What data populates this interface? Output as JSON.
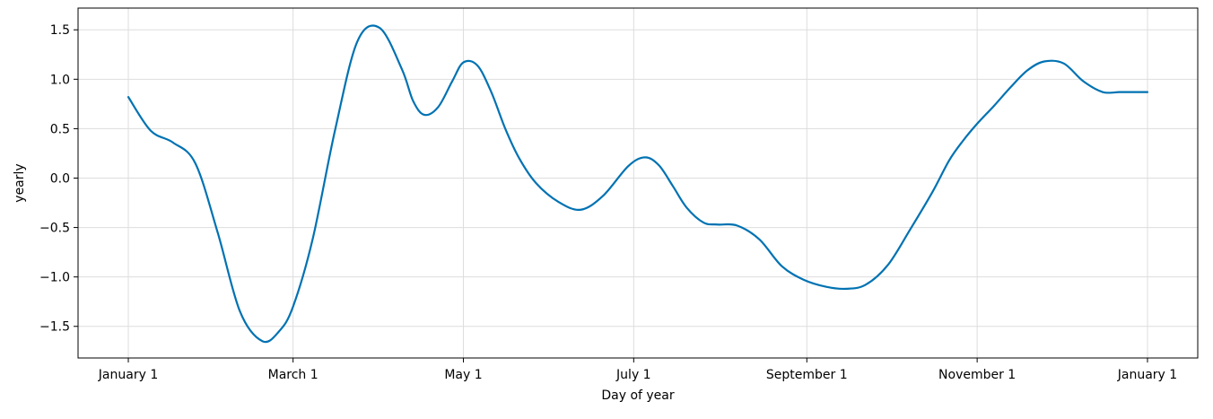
{
  "chart_data": {
    "type": "line",
    "title": "",
    "xlabel": "Day of year",
    "ylabel": "yearly",
    "x_tick_labels": [
      {
        "label": "January 1",
        "day": 1
      },
      {
        "label": "March 1",
        "day": 60
      },
      {
        "label": "May 1",
        "day": 121
      },
      {
        "label": "July 1",
        "day": 182
      },
      {
        "label": "September 1",
        "day": 244
      },
      {
        "label": "November 1",
        "day": 305
      },
      {
        "label": "January 1",
        "day": 366
      }
    ],
    "y_ticks": [
      1.5,
      1.0,
      0.5,
      0.0,
      -0.5,
      -1.0,
      -1.5
    ],
    "y_tick_labels": [
      "1.5",
      "1.0",
      "0.5",
      "0.0",
      "−0.5",
      "−1.0",
      "−1.5"
    ],
    "xlim": [
      -17,
      384
    ],
    "ylim": [
      -1.82,
      1.72
    ],
    "grid": true,
    "series": [
      {
        "color": "#0072b2",
        "x": [
          1,
          9,
          17,
          25,
          33,
          41,
          49,
          55,
          60,
          67,
          75,
          83,
          91,
          99,
          103,
          107,
          112,
          117,
          121,
          126,
          131,
          136,
          141,
          147,
          155,
          163,
          171,
          180,
          186,
          191,
          196,
          201,
          207,
          212,
          219,
          227,
          235,
          243,
          251,
          258,
          265,
          273,
          281,
          289,
          295,
          300,
          305,
          311,
          317,
          323,
          329,
          336,
          343,
          350,
          356,
          361,
          366
        ],
        "y": [
          0.82,
          0.48,
          0.36,
          0.15,
          -0.55,
          -1.35,
          -1.65,
          -1.55,
          -1.3,
          -0.62,
          0.48,
          1.38,
          1.52,
          1.1,
          0.78,
          0.64,
          0.72,
          0.98,
          1.17,
          1.14,
          0.87,
          0.5,
          0.2,
          -0.05,
          -0.24,
          -0.32,
          -0.18,
          0.12,
          0.21,
          0.13,
          -0.08,
          -0.3,
          -0.45,
          -0.47,
          -0.48,
          -0.62,
          -0.89,
          -1.03,
          -1.1,
          -1.12,
          -1.08,
          -0.88,
          -0.52,
          -0.14,
          0.18,
          0.38,
          0.55,
          0.73,
          0.92,
          1.09,
          1.18,
          1.16,
          0.98,
          0.87,
          0.87,
          0.87,
          0.87
        ]
      }
    ]
  }
}
